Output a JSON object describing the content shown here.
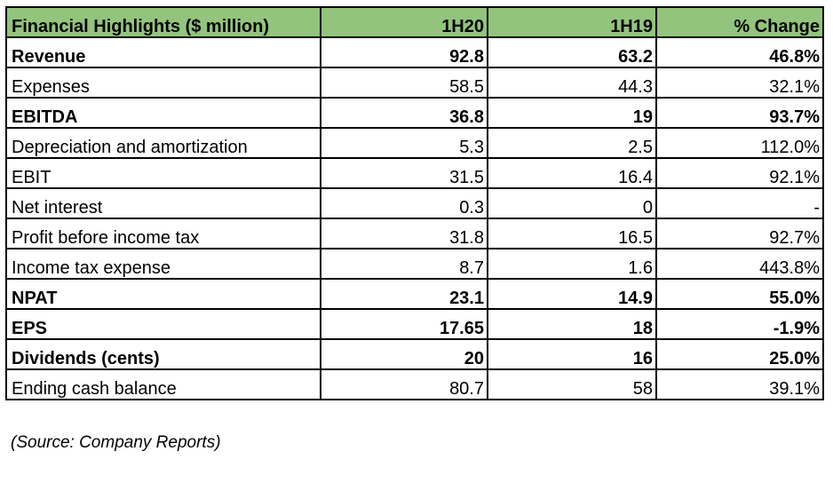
{
  "table": {
    "header": [
      "Financial Highlights ($ million)",
      "1H20",
      "1H19",
      "% Change"
    ],
    "rows": [
      {
        "cells": [
          "Revenue",
          "92.8",
          "63.2",
          "46.8%"
        ],
        "bold": true
      },
      {
        "cells": [
          "Expenses",
          "58.5",
          "44.3",
          "32.1%"
        ],
        "bold": false
      },
      {
        "cells": [
          "EBITDA",
          "36.8",
          "19",
          "93.7%"
        ],
        "bold": true
      },
      {
        "cells": [
          "Depreciation and amortization",
          "5.3",
          "2.5",
          "112.0%"
        ],
        "bold": false
      },
      {
        "cells": [
          "EBIT",
          "31.5",
          "16.4",
          "92.1%"
        ],
        "bold": false
      },
      {
        "cells": [
          "Net interest",
          "0.3",
          "0",
          "-"
        ],
        "bold": false
      },
      {
        "cells": [
          "Profit before income tax",
          "31.8",
          "16.5",
          "92.7%"
        ],
        "bold": false
      },
      {
        "cells": [
          "Income tax expense",
          "8.7",
          "1.6",
          "443.8%"
        ],
        "bold": false
      },
      {
        "cells": [
          "NPAT",
          "23.1",
          "14.9",
          "55.0%"
        ],
        "bold": true
      },
      {
        "cells": [
          "EPS",
          "17.65",
          "18",
          "-1.9%"
        ],
        "bold": true
      },
      {
        "cells": [
          "Dividends (cents)",
          "20",
          "16",
          "25.0%"
        ],
        "bold": true
      },
      {
        "cells": [
          "Ending cash balance",
          "80.7",
          "58",
          "39.1%"
        ],
        "bold": false
      }
    ]
  },
  "source": "(Source: Company Reports)"
}
